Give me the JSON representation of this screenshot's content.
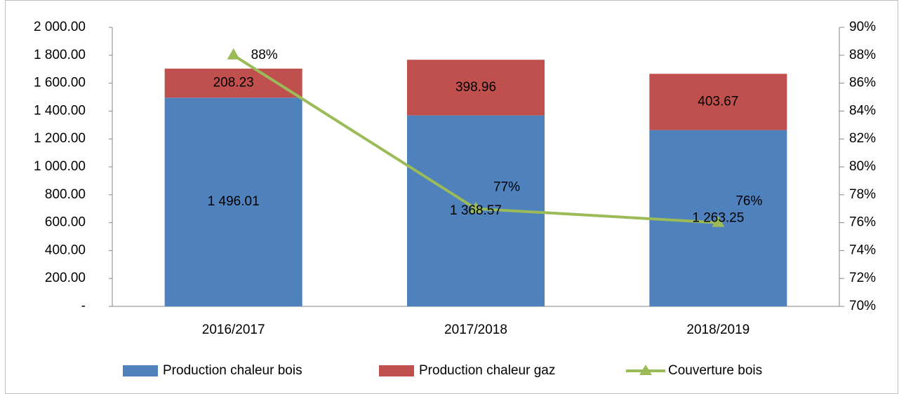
{
  "chart_data": {
    "type": "bar_line",
    "categories": [
      "2016/2017",
      "2017/2018",
      "2018/2019"
    ],
    "series": [
      {
        "name": "Production chaleur bois",
        "color": "#4f81bd",
        "kind": "bar",
        "values": [
          1496.01,
          1368.57,
          1263.25
        ],
        "value_labels": [
          "1 496.01",
          "1 368.57",
          "1 263.25"
        ]
      },
      {
        "name": "Production chaleur gaz",
        "color": "#c0504d",
        "kind": "bar",
        "values": [
          208.23,
          398.96,
          403.67
        ],
        "value_labels": [
          "208.23",
          "398.96",
          "403.67"
        ]
      },
      {
        "name": "Couverture bois",
        "color": "#9bbb59",
        "kind": "line",
        "axis": "y2",
        "values": [
          88,
          77,
          76
        ],
        "value_labels": [
          "88%",
          "77%",
          "76%"
        ]
      }
    ],
    "stacked": true,
    "ylim": [
      0,
      2000
    ],
    "yticks": [
      {
        "value": 0,
        "label": "-"
      },
      {
        "value": 200,
        "label": "200.00"
      },
      {
        "value": 400,
        "label": "400.00"
      },
      {
        "value": 600,
        "label": "600.00"
      },
      {
        "value": 800,
        "label": "800.00"
      },
      {
        "value": 1000,
        "label": "1 000.00"
      },
      {
        "value": 1200,
        "label": "1 200.00"
      },
      {
        "value": 1400,
        "label": "1 400.00"
      },
      {
        "value": 1600,
        "label": "1 600.00"
      },
      {
        "value": 1800,
        "label": "1 800.00"
      },
      {
        "value": 2000,
        "label": "2 000.00"
      }
    ],
    "y2lim": [
      70,
      90
    ],
    "y2ticks": [
      {
        "value": 70,
        "label": "70%"
      },
      {
        "value": 72,
        "label": "72%"
      },
      {
        "value": 74,
        "label": "74%"
      },
      {
        "value": 76,
        "label": "76%"
      },
      {
        "value": 78,
        "label": "78%"
      },
      {
        "value": 80,
        "label": "80%"
      },
      {
        "value": 82,
        "label": "82%"
      },
      {
        "value": 84,
        "label": "84%"
      },
      {
        "value": 86,
        "label": "86%"
      },
      {
        "value": 88,
        "label": "88%"
      },
      {
        "value": 90,
        "label": "90%"
      }
    ],
    "grid": false,
    "legend": "bottom"
  }
}
